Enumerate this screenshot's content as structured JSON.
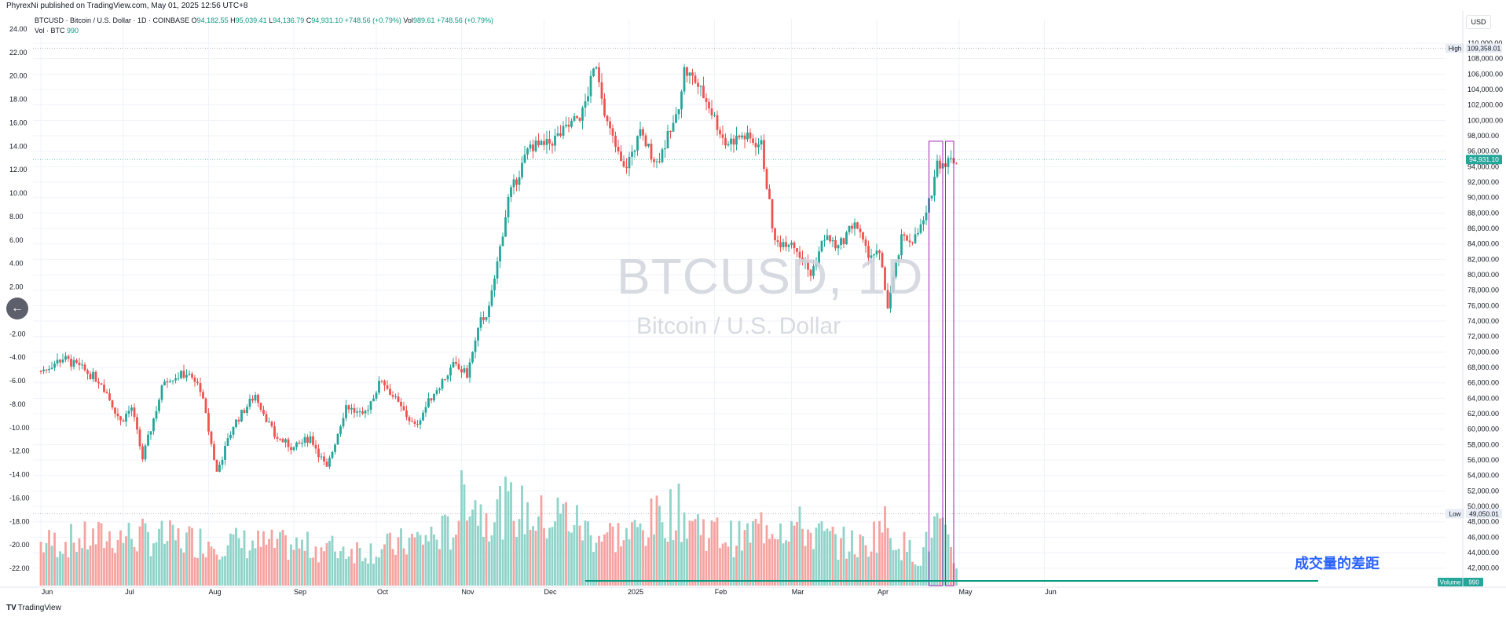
{
  "header": {
    "published": "PhyrexNi published on TradingView.com, May 01, 2025 12:56 UTC+8"
  },
  "legend": {
    "title": "BTCUSD · Bitcoin / U.S. Dollar · 1D · COINBASE",
    "open_label": "O",
    "open": "94,182.55",
    "high_label": "H",
    "high": "95,039.41",
    "low_label": "L",
    "low": "94,136.79",
    "close_label": "C",
    "close": "94,931.10",
    "change": "+748.56 (+0.79%)",
    "vol_label": "Vol",
    "vol_value": "989.61",
    "vol_change": "+748.56 (+0.79%)",
    "volume_line_label": "Vol · BTC",
    "volume_line_value": "990"
  },
  "currency": "USD",
  "watermark": {
    "title": "BTCUSD, 1D",
    "subtitle": "Bitcoin / U.S. Dollar"
  },
  "annotation": "成交量的差距",
  "footer": {
    "logo": "TradingView"
  },
  "colors": {
    "up": "#26a69a",
    "down": "#ef5350",
    "up_volume": "#8fd3c9",
    "down_volume": "#f5a3a1",
    "grid": "#f0f3fa",
    "accent": "#2962ff",
    "box": "#9c27b0",
    "volume_ma": "#089981"
  },
  "chart_data": {
    "type": "candlestick",
    "symbol": "BTCUSD",
    "interval": "1D",
    "right_axis": {
      "ylim": [
        41000,
        110500
      ],
      "ticks": [
        "110,000.00",
        "108,000.00",
        "106,000.00",
        "104,000.00",
        "102,000.00",
        "100,000.00",
        "98,000.00",
        "96,000.00",
        "94,000.00",
        "92,000.00",
        "90,000.00",
        "88,000.00",
        "86,000.00",
        "84,000.00",
        "82,000.00",
        "80,000.00",
        "78,000.00",
        "76,000.00",
        "74,000.00",
        "72,000.00",
        "70,000.00",
        "68,000.00",
        "66,000.00",
        "64,000.00",
        "62,000.00",
        "60,000.00",
        "58,000.00",
        "56,000.00",
        "54,000.00",
        "52,000.00",
        "50,000.00",
        "48,000.00",
        "46,000.00",
        "44,000.00",
        "42,000.00"
      ],
      "tick_values": [
        110000,
        108000,
        106000,
        104000,
        102000,
        100000,
        98000,
        96000,
        94000,
        92000,
        90000,
        88000,
        86000,
        84000,
        82000,
        80000,
        78000,
        76000,
        74000,
        72000,
        70000,
        68000,
        66000,
        64000,
        62000,
        60000,
        58000,
        56000,
        54000,
        52000,
        50000,
        48000,
        46000,
        44000,
        42000
      ]
    },
    "left_axis": {
      "ticks": [
        "24.00",
        "22.00",
        "20.00",
        "18.00",
        "16.00",
        "14.00",
        "12.00",
        "10.00",
        "8.00",
        "6.00",
        "4.00",
        "2.00",
        "-2.00",
        "-4.00",
        "-6.00",
        "-8.00",
        "-10.00",
        "-12.00",
        "-14.00",
        "-16.00",
        "-18.00",
        "-20.00",
        "-22.00"
      ],
      "tick_values": [
        24,
        22,
        20,
        18,
        16,
        14,
        12,
        10,
        8,
        6,
        4,
        2,
        -2,
        -4,
        -6,
        -8,
        -10,
        -12,
        -14,
        -16,
        -18,
        -20,
        -22
      ]
    },
    "x_axis": {
      "labels": [
        "Jun",
        "Jul",
        "Aug",
        "Sep",
        "Oct",
        "Nov",
        "Dec",
        "2025",
        "Feb",
        "Mar",
        "Apr",
        "May",
        "Jun"
      ],
      "label_days": [
        0,
        30,
        61,
        92,
        122,
        153,
        183,
        214,
        245,
        273,
        304,
        334,
        365
      ]
    },
    "markers": {
      "high_label": "High",
      "high": 109358.01,
      "high_text": "109,358.01",
      "low_label": "Low",
      "low": 49050.01,
      "low_text": "49,050.01",
      "last": 94931.1,
      "last_text": "94,931.10",
      "volume_label": "Volume",
      "volume_value": "990"
    },
    "close_path": [
      [
        0,
        67500
      ],
      [
        8,
        69200
      ],
      [
        15,
        67800
      ],
      [
        22,
        66100
      ],
      [
        29,
        61000
      ],
      [
        33,
        62800
      ],
      [
        37,
        56200
      ],
      [
        45,
        66500
      ],
      [
        53,
        67200
      ],
      [
        58,
        65300
      ],
      [
        64,
        54400
      ],
      [
        70,
        60500
      ],
      [
        78,
        64500
      ],
      [
        85,
        59100
      ],
      [
        92,
        57500
      ],
      [
        98,
        59000
      ],
      [
        104,
        54800
      ],
      [
        111,
        63100
      ],
      [
        117,
        61500
      ],
      [
        124,
        66500
      ],
      [
        130,
        63200
      ],
      [
        136,
        60300
      ],
      [
        143,
        64800
      ],
      [
        150,
        68200
      ],
      [
        155,
        67100
      ],
      [
        160,
        74000
      ],
      [
        163,
        75500
      ],
      [
        167,
        83500
      ],
      [
        170,
        89800
      ],
      [
        178,
        96800
      ],
      [
        183,
        96500
      ],
      [
        190,
        98500
      ],
      [
        197,
        101000
      ],
      [
        202,
        107500
      ],
      [
        206,
        99500
      ],
      [
        212,
        93500
      ],
      [
        218,
        98200
      ],
      [
        224,
        94500
      ],
      [
        231,
        100200
      ],
      [
        234,
        106500
      ],
      [
        238,
        105100
      ],
      [
        243,
        101900
      ],
      [
        249,
        97000
      ],
      [
        255,
        98000
      ],
      [
        262,
        96800
      ],
      [
        267,
        84000
      ],
      [
        273,
        84500
      ],
      [
        280,
        80000
      ],
      [
        285,
        85000
      ],
      [
        290,
        83500
      ],
      [
        296,
        87000
      ],
      [
        300,
        83000
      ],
      [
        305,
        82500
      ],
      [
        308,
        76000
      ],
      [
        313,
        84500
      ],
      [
        318,
        84800
      ],
      [
        322,
        87500
      ],
      [
        326,
        94500
      ],
      [
        331,
        94800
      ],
      [
        333,
        94931
      ]
    ],
    "volume_path": [
      [
        0,
        0.32
      ],
      [
        30,
        0.38
      ],
      [
        61,
        0.34
      ],
      [
        92,
        0.3
      ],
      [
        122,
        0.27
      ],
      [
        150,
        0.42
      ],
      [
        155,
        0.78
      ],
      [
        160,
        0.55
      ],
      [
        170,
        0.6
      ],
      [
        183,
        0.5
      ],
      [
        190,
        0.55
      ],
      [
        200,
        0.4
      ],
      [
        214,
        0.38
      ],
      [
        230,
        0.58
      ],
      [
        245,
        0.4
      ],
      [
        255,
        0.35
      ],
      [
        265,
        0.5
      ],
      [
        275,
        0.45
      ],
      [
        290,
        0.33
      ],
      [
        300,
        0.3
      ],
      [
        306,
        0.48
      ],
      [
        315,
        0.28
      ],
      [
        320,
        0.22
      ],
      [
        326,
        0.48
      ],
      [
        333,
        0.15
      ]
    ],
    "gap_boxes": [
      {
        "day_from": 323,
        "day_to": 328,
        "price_top": 97300
      },
      {
        "day_from": 329,
        "day_to": 332,
        "price_top": 97300
      }
    ]
  }
}
